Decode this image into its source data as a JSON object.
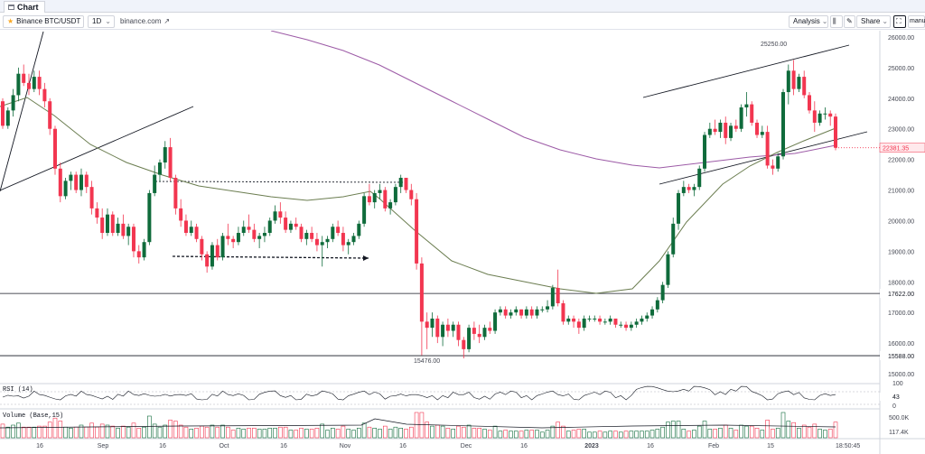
{
  "tab": {
    "label": "Chart"
  },
  "toolbar": {
    "symbol": "Binance BTC/USDT",
    "interval": "1D",
    "source": "binance.com",
    "analysis_label": "Analysis",
    "share_label": "Share",
    "manual_label": "manu"
  },
  "chart_data": {
    "type": "candlestick",
    "symbol": "Binance BTC/USDT",
    "price_axis": {
      "min": 15000,
      "max": 26000,
      "ticks": [
        26000,
        25000,
        24000,
        23000,
        22000,
        21000,
        20000,
        19000,
        18000,
        17000,
        16000,
        15000
      ]
    },
    "current_price_label": "22381.35",
    "current_price": 22381.35,
    "horizontal_levels": [
      {
        "label": "17622.00",
        "value": 17622
      },
      {
        "label": "15588.00",
        "value": 15588
      }
    ],
    "annotations": [
      {
        "label": "25250.00",
        "value": 25250
      },
      {
        "label": "15476.00",
        "value": 15476
      }
    ],
    "x_ticks": [
      "16",
      "Sep",
      "16",
      "Oct",
      "16",
      "Nov",
      "16",
      "Dec",
      "16",
      "2023",
      "16",
      "Feb",
      "15"
    ],
    "time_label": "18:50:45",
    "candles": [
      [
        23900,
        24000,
        23000,
        23100
      ],
      [
        23100,
        23700,
        23000,
        23600
      ],
      [
        23600,
        24300,
        23400,
        24100
      ],
      [
        24100,
        25000,
        23900,
        24800
      ],
      [
        24800,
        25100,
        24400,
        24500
      ],
      [
        24500,
        24800,
        24100,
        24300
      ],
      [
        24300,
        24900,
        24200,
        24700
      ],
      [
        24700,
        24900,
        24100,
        24300
      ],
      [
        24300,
        24500,
        23700,
        23900
      ],
      [
        23900,
        24000,
        22800,
        23000
      ],
      [
        23000,
        23100,
        21500,
        21700
      ],
      [
        21700,
        21900,
        20600,
        20800
      ],
      [
        20800,
        21400,
        20700,
        21300
      ],
      [
        21300,
        21600,
        21000,
        21500
      ],
      [
        21500,
        21600,
        20900,
        21000
      ],
      [
        21000,
        21700,
        20800,
        21500
      ],
      [
        21500,
        21600,
        20900,
        21100
      ],
      [
        21100,
        21300,
        20200,
        20400
      ],
      [
        20400,
        20600,
        19900,
        20100
      ],
      [
        20100,
        20400,
        19400,
        19600
      ],
      [
        19600,
        20400,
        19500,
        20200
      ],
      [
        20200,
        20300,
        19500,
        19600
      ],
      [
        19600,
        20100,
        19500,
        19900
      ],
      [
        19900,
        20200,
        19400,
        19500
      ],
      [
        19500,
        19900,
        19200,
        19800
      ],
      [
        19800,
        19900,
        18800,
        19000
      ],
      [
        19000,
        19200,
        18600,
        18800
      ],
      [
        18800,
        19400,
        18700,
        19300
      ],
      [
        19300,
        21000,
        19200,
        20900
      ],
      [
        20900,
        21800,
        20800,
        21500
      ],
      [
        21500,
        22000,
        21300,
        21900
      ],
      [
        21900,
        22600,
        21700,
        22400
      ],
      [
        22400,
        22700,
        21300,
        21400
      ],
      [
        21400,
        21500,
        20200,
        20400
      ],
      [
        20400,
        20700,
        19800,
        20000
      ],
      [
        20000,
        20200,
        19500,
        19600
      ],
      [
        19600,
        20000,
        19500,
        19800
      ],
      [
        19800,
        19900,
        19300,
        19400
      ],
      [
        19400,
        19500,
        18700,
        18900
      ],
      [
        18900,
        19000,
        18300,
        18500
      ],
      [
        18500,
        19300,
        18400,
        19200
      ],
      [
        19200,
        19400,
        18700,
        18800
      ],
      [
        18800,
        19600,
        18700,
        19500
      ],
      [
        19500,
        19900,
        19200,
        19400
      ],
      [
        19400,
        19500,
        19100,
        19300
      ],
      [
        19300,
        19800,
        19200,
        19600
      ],
      [
        19600,
        20000,
        19500,
        19800
      ],
      [
        19800,
        20200,
        19600,
        19700
      ],
      [
        19700,
        19900,
        19300,
        19400
      ],
      [
        19400,
        19600,
        19100,
        19500
      ],
      [
        19500,
        19800,
        19300,
        19600
      ],
      [
        19600,
        20100,
        19500,
        20000
      ],
      [
        20000,
        20500,
        19900,
        20300
      ],
      [
        20300,
        20600,
        19900,
        20100
      ],
      [
        20100,
        20300,
        19600,
        19700
      ],
      [
        19700,
        20000,
        19600,
        19900
      ],
      [
        19900,
        20100,
        19700,
        19800
      ],
      [
        19800,
        19900,
        19300,
        19400
      ],
      [
        19400,
        19700,
        19200,
        19600
      ],
      [
        19600,
        19800,
        19300,
        19400
      ],
      [
        19400,
        19600,
        19000,
        19200
      ],
      [
        19200,
        19500,
        18500,
        19300
      ],
      [
        19300,
        19500,
        19100,
        19400
      ],
      [
        19400,
        19900,
        19300,
        19800
      ],
      [
        19800,
        20000,
        19500,
        19600
      ],
      [
        19600,
        19800,
        19000,
        19200
      ],
      [
        19200,
        19400,
        18900,
        19300
      ],
      [
        19300,
        19600,
        19200,
        19500
      ],
      [
        19500,
        20000,
        19400,
        19900
      ],
      [
        19900,
        20900,
        19800,
        20800
      ],
      [
        20800,
        21200,
        20500,
        20600
      ],
      [
        20600,
        21000,
        20400,
        20900
      ],
      [
        20900,
        21200,
        20700,
        21000
      ],
      [
        21000,
        21100,
        20300,
        20400
      ],
      [
        20400,
        20700,
        20200,
        20600
      ],
      [
        20600,
        21200,
        20500,
        21100
      ],
      [
        21100,
        21500,
        20900,
        21400
      ],
      [
        21400,
        21400,
        20900,
        21000
      ],
      [
        21000,
        21200,
        20500,
        20700
      ],
      [
        20700,
        20900,
        18400,
        18600
      ],
      [
        18600,
        18800,
        15600,
        16700
      ],
      [
        16700,
        17000,
        15800,
        16500
      ],
      [
        16500,
        17000,
        16200,
        16800
      ],
      [
        16800,
        16900,
        16000,
        16200
      ],
      [
        16200,
        16700,
        15900,
        16600
      ],
      [
        16600,
        16800,
        16200,
        16400
      ],
      [
        16400,
        16700,
        16200,
        16600
      ],
      [
        16600,
        16700,
        15900,
        16100
      ],
      [
        16100,
        16200,
        15500,
        15800
      ],
      [
        15800,
        16600,
        15700,
        16500
      ],
      [
        16500,
        16700,
        16100,
        16300
      ],
      [
        16300,
        16600,
        16000,
        16200
      ],
      [
        16200,
        16600,
        16100,
        16500
      ],
      [
        16500,
        16700,
        16300,
        16400
      ],
      [
        16400,
        17100,
        16300,
        17000
      ],
      [
        17000,
        17200,
        16900,
        17100
      ],
      [
        17100,
        17200,
        16800,
        16900
      ],
      [
        16900,
        17100,
        16800,
        17000
      ],
      [
        17000,
        17200,
        16900,
        17100
      ],
      [
        17100,
        17100,
        16800,
        16900
      ],
      [
        16900,
        17200,
        16800,
        17100
      ],
      [
        17100,
        17200,
        16800,
        16900
      ],
      [
        16900,
        17200,
        16800,
        17100
      ],
      [
        17100,
        17200,
        17000,
        17100
      ],
      [
        17100,
        17400,
        17000,
        17200
      ],
      [
        17200,
        17900,
        17100,
        17800
      ],
      [
        17800,
        18400,
        17200,
        17300
      ],
      [
        17300,
        17400,
        16600,
        16700
      ],
      [
        16700,
        16900,
        16600,
        16800
      ],
      [
        16800,
        16900,
        16500,
        16700
      ],
      [
        16700,
        16800,
        16300,
        16500
      ],
      [
        16500,
        16900,
        16400,
        16800
      ],
      [
        16800,
        16900,
        16700,
        16800
      ],
      [
        16800,
        16900,
        16700,
        16800
      ],
      [
        16800,
        16900,
        16600,
        16700
      ],
      [
        16700,
        16800,
        16600,
        16700
      ],
      [
        16700,
        16900,
        16600,
        16800
      ],
      [
        16800,
        16800,
        16500,
        16600
      ],
      [
        16600,
        16700,
        16500,
        16600
      ],
      [
        16600,
        16700,
        16400,
        16500
      ],
      [
        16500,
        16700,
        16400,
        16600
      ],
      [
        16600,
        16800,
        16500,
        16700
      ],
      [
        16700,
        16900,
        16600,
        16800
      ],
      [
        16800,
        17000,
        16700,
        16900
      ],
      [
        16900,
        17200,
        16800,
        17100
      ],
      [
        17100,
        17500,
        17000,
        17400
      ],
      [
        17400,
        18000,
        17300,
        17900
      ],
      [
        17900,
        19000,
        17800,
        18900
      ],
      [
        18900,
        20100,
        18800,
        19900
      ],
      [
        19900,
        21000,
        19700,
        20900
      ],
      [
        20900,
        21300,
        20800,
        21100
      ],
      [
        21100,
        21200,
        20900,
        21000
      ],
      [
        21000,
        21200,
        20800,
        21100
      ],
      [
        21100,
        21800,
        21000,
        21700
      ],
      [
        21700,
        22900,
        21600,
        22800
      ],
      [
        22800,
        23200,
        22700,
        23000
      ],
      [
        23000,
        23300,
        22800,
        22900
      ],
      [
        22900,
        23300,
        22700,
        23200
      ],
      [
        23200,
        23400,
        22500,
        22700
      ],
      [
        22700,
        23200,
        22600,
        23100
      ],
      [
        23100,
        23300,
        22900,
        23000
      ],
      [
        23000,
        23800,
        22900,
        23700
      ],
      [
        23700,
        24200,
        23400,
        23800
      ],
      [
        23800,
        23900,
        23100,
        23200
      ],
      [
        23200,
        23300,
        22700,
        22800
      ],
      [
        22800,
        23100,
        22700,
        22900
      ],
      [
        22900,
        23100,
        21700,
        21800
      ],
      [
        21800,
        22000,
        21500,
        21700
      ],
      [
        21700,
        22200,
        21600,
        22100
      ],
      [
        22100,
        24300,
        22000,
        24200
      ],
      [
        24200,
        25100,
        23800,
        24900
      ],
      [
        24900,
        25250,
        24100,
        24300
      ],
      [
        24300,
        24800,
        24200,
        24700
      ],
      [
        24700,
        24900,
        24000,
        24100
      ],
      [
        24100,
        24200,
        23500,
        23600
      ],
      [
        23600,
        23900,
        22900,
        23200
      ],
      [
        23200,
        23600,
        23100,
        23500
      ],
      [
        23500,
        23700,
        23300,
        23500
      ],
      [
        23500,
        23600,
        23100,
        23400
      ],
      [
        23400,
        23500,
        22300,
        22381
      ]
    ],
    "ma_short": {
      "name": "",
      "values_hint": "moving average"
    },
    "rsi": {
      "label": "RSI (14)",
      "ticks": [
        100,
        43,
        0
      ]
    },
    "volume": {
      "label": "Volume (Base,15)",
      "ticks": [
        "500.0K",
        "117.4K"
      ]
    }
  }
}
